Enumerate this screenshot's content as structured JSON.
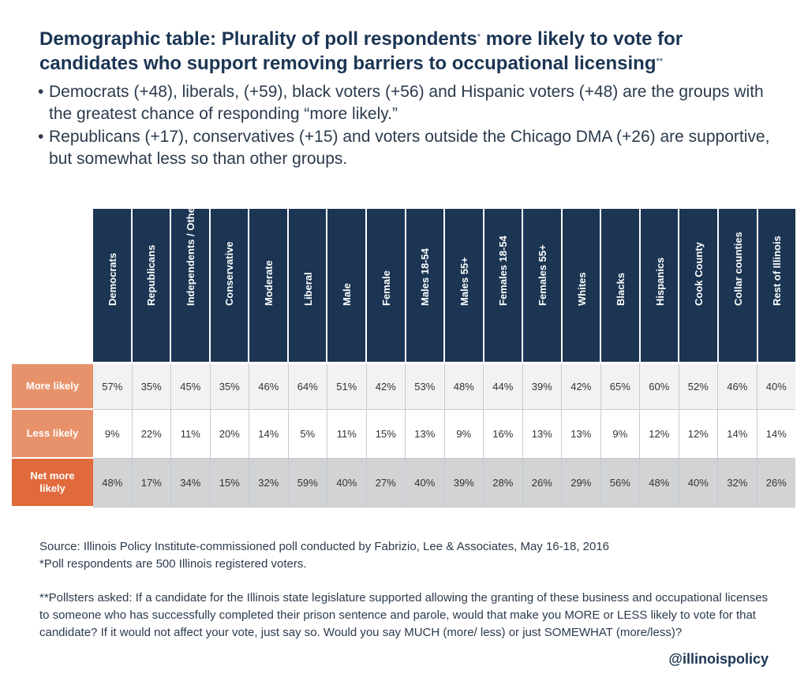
{
  "title": {
    "line1": "Demographic table: Plurality of poll respondents",
    "mark1": "*",
    "line1_end": " more likely to vote for",
    "line2": "candidates who support removing barriers to occupational licensing",
    "mark2": "**"
  },
  "bullets": [
    "Democrats (+48), liberals, (+59), black voters (+56) and Hispanic voters (+48) are the groups with the greatest chance of responding “more likely.”",
    "Republicans (+17), conservatives (+15) and voters outside the Chicago DMA (+26) are supportive, but somewhat less so than other groups."
  ],
  "bullet_mark": "•",
  "chart_data": {
    "type": "table",
    "columns": [
      "Democrats",
      "Republicans",
      "Independents / Other",
      "Conservative",
      "Moderate",
      "Liberal",
      "Male",
      "Female",
      "Males 18-54",
      "Males 55+",
      "Females 18-54",
      "Females 55+",
      "Whites",
      "Blacks",
      "Hispanics",
      "Cook County",
      "Collar counties",
      "Rest of Illinois"
    ],
    "rows": [
      {
        "label": "More likely",
        "values": [
          "57%",
          "35%",
          "45%",
          "35%",
          "46%",
          "64%",
          "51%",
          "42%",
          "53%",
          "48%",
          "44%",
          "39%",
          "42%",
          "65%",
          "60%",
          "52%",
          "46%",
          "40%"
        ]
      },
      {
        "label": "Less likely",
        "values": [
          "9%",
          "22%",
          "11%",
          "20%",
          "14%",
          "5%",
          "11%",
          "15%",
          "13%",
          "9%",
          "16%",
          "13%",
          "13%",
          "9%",
          "12%",
          "12%",
          "14%",
          "14%"
        ]
      },
      {
        "label": "Net more likely",
        "values": [
          "48%",
          "17%",
          "34%",
          "15%",
          "32%",
          "59%",
          "40%",
          "27%",
          "40%",
          "39%",
          "28%",
          "26%",
          "29%",
          "56%",
          "48%",
          "40%",
          "32%",
          "26%"
        ]
      }
    ]
  },
  "colors": {
    "header_bg": "#1b3553",
    "label_light": "#e8926b",
    "label_dark": "#e06a3b"
  },
  "source": {
    "line1": "Source: Illinois Policy Institute-commissioned poll conducted by Fabrizio, Lee & Associates, May 16-18, 2016",
    "line2": "*Poll respondents are 500 Illinois registered voters."
  },
  "note": "**Pollsters asked: If a candidate for the Illinois state legislature supported allowing the granting of these business and occupational licenses to someone who has successfully completed their prison sentence and parole, would that make you MORE or LESS likely to vote for that candidate? If it would not affect your vote, just say so. Would you say MUCH (more/ less) or just SOMEWHAT (more/less)?",
  "handle": "@illinoispolicy"
}
